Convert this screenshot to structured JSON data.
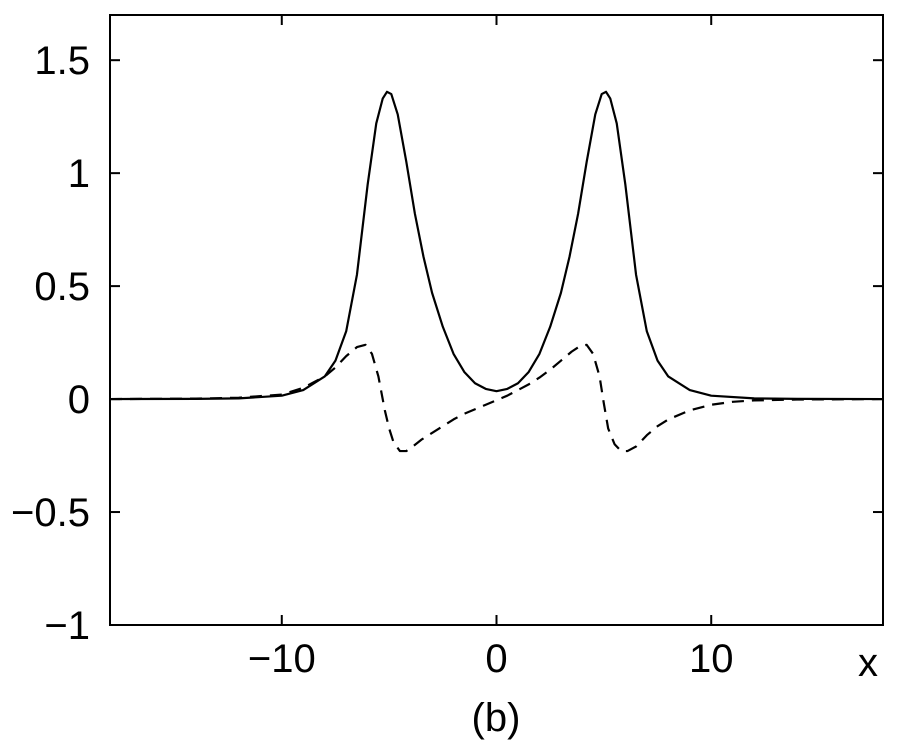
{
  "chart_data": {
    "type": "line",
    "title": "",
    "caption": "(b)",
    "xlabel": "x",
    "ylabel": "",
    "xlim": [
      -18,
      18
    ],
    "ylim": [
      -1,
      1.7
    ],
    "xticks": [
      -10,
      0,
      10
    ],
    "xtick_labels": [
      "−10",
      "0",
      "10"
    ],
    "yticks": [
      -1,
      -0.5,
      0,
      0.5,
      1,
      1.5
    ],
    "ytick_labels": [
      "−1",
      "−0.5",
      "0",
      "0.5",
      "1",
      "1.5"
    ],
    "grid": false,
    "legend": "none",
    "series": [
      {
        "style": "solid",
        "x": [
          -18,
          -14,
          -12,
          -10,
          -9,
          -8,
          -7.5,
          -7,
          -6.5,
          -6,
          -5.6,
          -5.3,
          -5.1,
          -4.9,
          -4.6,
          -4.2,
          -3.8,
          -3.4,
          -3,
          -2.5,
          -2,
          -1.5,
          -1,
          -0.5,
          0,
          0.5,
          1,
          1.5,
          2,
          2.5,
          3,
          3.4,
          3.8,
          4.2,
          4.6,
          4.9,
          5.1,
          5.3,
          5.6,
          6,
          6.5,
          7,
          7.5,
          8,
          9,
          10,
          12,
          14,
          18
        ],
        "y": [
          0,
          0.001,
          0.003,
          0.015,
          0.04,
          0.1,
          0.17,
          0.3,
          0.55,
          0.95,
          1.22,
          1.33,
          1.36,
          1.35,
          1.26,
          1.05,
          0.82,
          0.63,
          0.47,
          0.32,
          0.2,
          0.12,
          0.07,
          0.045,
          0.035,
          0.045,
          0.07,
          0.12,
          0.2,
          0.32,
          0.47,
          0.63,
          0.82,
          1.05,
          1.26,
          1.35,
          1.36,
          1.33,
          1.22,
          0.95,
          0.55,
          0.3,
          0.17,
          0.1,
          0.04,
          0.015,
          0.003,
          0.001,
          0
        ]
      },
      {
        "style": "dashed",
        "x": [
          -18,
          -14,
          -12,
          -10,
          -9,
          -8,
          -7.5,
          -7,
          -6.5,
          -6.1,
          -5.8,
          -5.5,
          -5.2,
          -5,
          -4.8,
          -4.5,
          -4.2,
          -3.9,
          -3.5,
          -3,
          -2.5,
          -2,
          -1.5,
          -1,
          -0.5,
          0,
          0.5,
          1,
          1.5,
          2,
          2.5,
          3,
          3.5,
          3.9,
          4.2,
          4.5,
          4.8,
          5,
          5.2,
          5.5,
          5.8,
          6.1,
          6.5,
          7,
          7.5,
          8,
          9,
          10,
          11,
          12,
          14,
          18
        ],
        "y": [
          0,
          0.002,
          0.006,
          0.02,
          0.05,
          0.1,
          0.14,
          0.19,
          0.23,
          0.24,
          0.2,
          0.1,
          -0.05,
          -0.13,
          -0.19,
          -0.23,
          -0.23,
          -0.21,
          -0.18,
          -0.15,
          -0.12,
          -0.09,
          -0.065,
          -0.045,
          -0.025,
          -0.005,
          0.015,
          0.04,
          0.065,
          0.095,
          0.13,
          0.17,
          0.21,
          0.235,
          0.24,
          0.2,
          0.1,
          -0.02,
          -0.13,
          -0.2,
          -0.23,
          -0.23,
          -0.21,
          -0.16,
          -0.12,
          -0.09,
          -0.05,
          -0.025,
          -0.012,
          -0.006,
          -0.002,
          0
        ]
      }
    ]
  }
}
